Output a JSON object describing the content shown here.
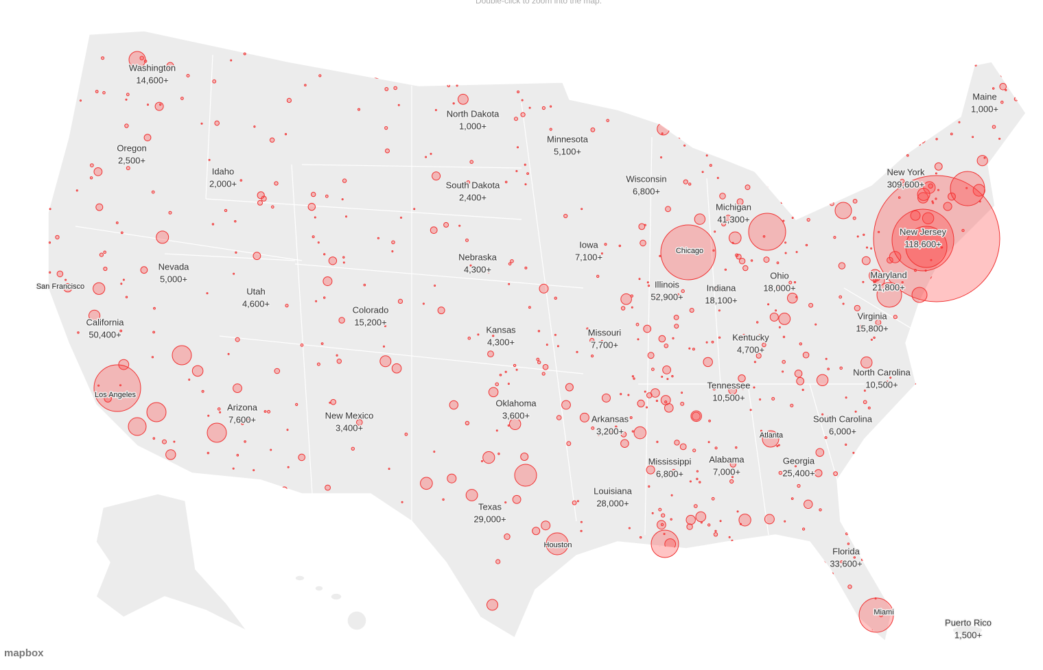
{
  "hint": "Double-click to zoom into the map.",
  "states": [
    {
      "name": "Washington",
      "count": "14,600+"
    },
    {
      "name": "Oregon",
      "count": "2,500+"
    },
    {
      "name": "Idaho",
      "count": "2,000+"
    },
    {
      "name": "Nevada",
      "count": "5,000+"
    },
    {
      "name": "Utah",
      "count": "4,600+"
    },
    {
      "name": "California",
      "count": "50,400+"
    },
    {
      "name": "Arizona",
      "count": "7,600+"
    },
    {
      "name": "Colorado",
      "count": "15,200+"
    },
    {
      "name": "New Mexico",
      "count": "3,400+"
    },
    {
      "name": "North Dakota",
      "count": "1,000+"
    },
    {
      "name": "South Dakota",
      "count": "2,400+"
    },
    {
      "name": "Nebraska",
      "count": "4,300+"
    },
    {
      "name": "Kansas",
      "count": "4,300+"
    },
    {
      "name": "Oklahoma",
      "count": "3,600+"
    },
    {
      "name": "Texas",
      "count": "29,000+"
    },
    {
      "name": "Minnesota",
      "count": "5,100+"
    },
    {
      "name": "Iowa",
      "count": "7,100+"
    },
    {
      "name": "Missouri",
      "count": "7,700+"
    },
    {
      "name": "Arkansas",
      "count": "3,200+"
    },
    {
      "name": "Louisiana",
      "count": "28,000+"
    },
    {
      "name": "Wisconsin",
      "count": "6,800+"
    },
    {
      "name": "Illinois",
      "count": "52,900+"
    },
    {
      "name": "Mississippi",
      "count": "6,800+"
    },
    {
      "name": "Michigan",
      "count": "41,300+"
    },
    {
      "name": "Indiana",
      "count": "18,100+"
    },
    {
      "name": "Ohio",
      "count": "18,000+"
    },
    {
      "name": "Kentucky",
      "count": "4,700+"
    },
    {
      "name": "Tennessee",
      "count": "10,500+"
    },
    {
      "name": "Alabama",
      "count": "7,000+"
    },
    {
      "name": "Georgia",
      "count": "25,400+"
    },
    {
      "name": "Florida",
      "count": "33,600+"
    },
    {
      "name": "South Carolina",
      "count": "6,000+"
    },
    {
      "name": "North Carolina",
      "count": "10,500+"
    },
    {
      "name": "Virginia",
      "count": "15,800+"
    },
    {
      "name": "Maryland",
      "count": "21,800+"
    },
    {
      "name": "New Jersey",
      "count": "118,600+"
    },
    {
      "name": "New York",
      "count": "309,600+"
    },
    {
      "name": "Maine",
      "count": "1,000+"
    },
    {
      "name": "Puerto Rico",
      "count": "1,500+"
    }
  ],
  "cities": [
    "San Francisco",
    "Los Angeles",
    "Chicago",
    "Houston",
    "Atlanta",
    "Miami"
  ],
  "attribution": "mapbox"
}
